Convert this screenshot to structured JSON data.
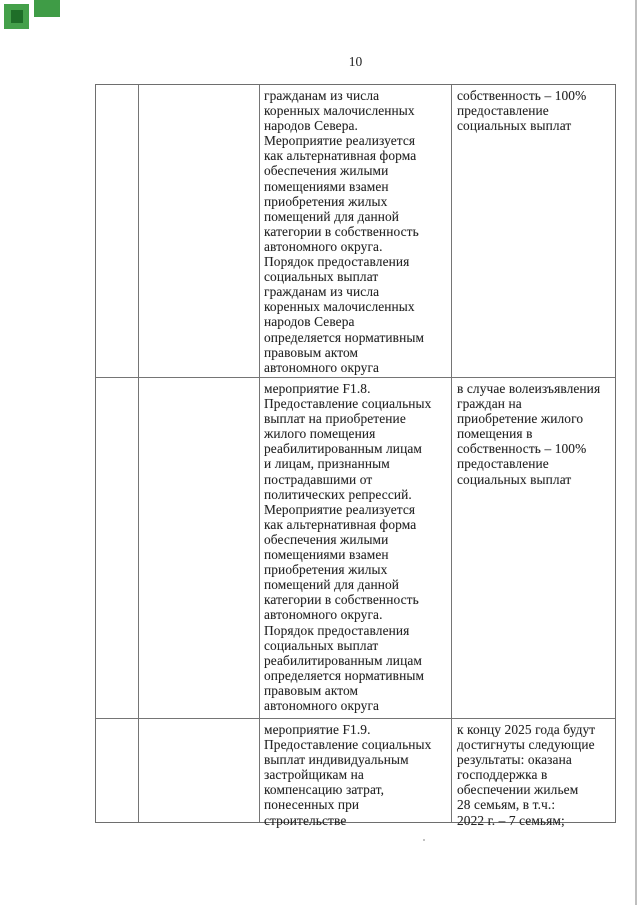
{
  "page": {
    "number": "10"
  },
  "colors": {
    "marker_green": "#44a04a",
    "marker_green_dark": "#1f6e28",
    "marker_green_b": "#3f9c46",
    "table_border_gray": "#6e6e6e"
  },
  "table": {
    "rows": [
      {
        "activity": "гражданам из числа\nкоренных малочисленных\nнародов Севера.\nМероприятие реализуется\nкак альтернативная форма\nобеспечения жилыми\nпомещениями взамен\nприобретения жилых\nпомещений для данной\nкатегории в собственность\nавтономного округа.\nПорядок предоставления\nсоциальных выплат\nгражданам из числа\nкоренных малочисленных\nнародов Севера\nопределяется нормативным\nправовым актом\nавтономного округа",
        "result": "собственность – 100%\nпредоставление\nсоциальных выплат"
      },
      {
        "activity": "мероприятие F1.8.\nПредоставление социальных\nвыплат на приобретение\nжилого помещения\nреабилитированным лицам\nи лицам, признанным\nпострадавшими от\nполитических репрессий.\nМероприятие реализуется\nкак альтернативная форма\nобеспечения жилыми\nпомещениями взамен\nприобретения жилых\nпомещений для данной\nкатегории в собственность\nавтономного округа.\nПорядок предоставления\nсоциальных выплат\nреабилитированным лицам\nопределяется нормативным\nправовым актом\nавтономного округа",
        "result": "в случае волеизъявления\nграждан на\nприобретение жилого\nпомещения в\nсобственность – 100%\nпредоставление\nсоциальных выплат"
      },
      {
        "activity": "мероприятие F1.9.\nПредоставление социальных\nвыплат индивидуальным\nзастройщикам на\nкомпенсацию затрат,\nпонесенных при\nстроительстве",
        "result": "к концу 2025 года будут\nдостигнуты следующие\nрезультаты: оказана\nгосподдержка в\nобеспечении жильем\n28 семьям, в т.ч.:\n2022 г. – 7 семьям;"
      }
    ]
  }
}
